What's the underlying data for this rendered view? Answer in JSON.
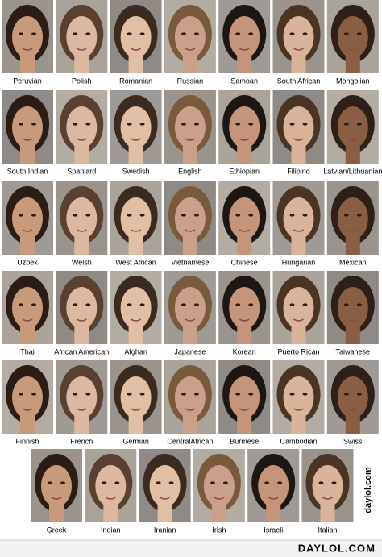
{
  "grid": {
    "rows": [
      [
        "Peruvian",
        "Polish",
        "Romanian",
        "Russian",
        "Samoan",
        "South African",
        "Mongolian"
      ],
      [
        "South Indian",
        "Spaniard",
        "Swedish",
        "English",
        "Ethiopian",
        "Filipino",
        "Latvian/Lithuanian"
      ],
      [
        "Uzbek",
        "Welsh",
        "West African",
        "Vietnamese",
        "Chinese",
        "Hungarian",
        "Mexican"
      ],
      [
        "Thai",
        "African American",
        "Afghan",
        "Japanese",
        "Korean",
        "Puerto Rican",
        "Taiwanese"
      ],
      [
        "Finnish",
        "French",
        "German",
        "CentralAfrican",
        "Burmese",
        "Cambodian",
        "Swiss"
      ],
      [
        "Greek",
        "Indian",
        "Iranian",
        "Irish",
        "Israeli",
        "Italian"
      ]
    ]
  },
  "watermark": "daylol.com",
  "footer": {
    "logo": "DAYLOL.COM"
  }
}
